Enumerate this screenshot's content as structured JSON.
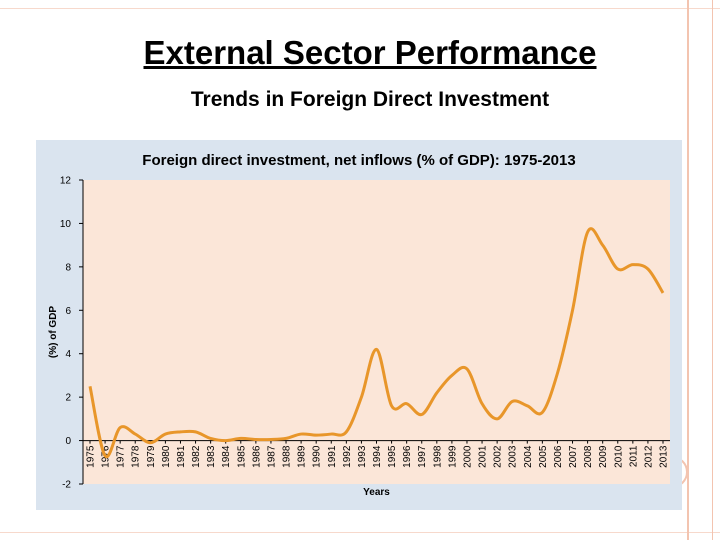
{
  "slide": {
    "title": "External Sector Performance",
    "subtitle": "Trends in Foreign Direct Investment"
  },
  "colors": {
    "panel_bg": "#dae4ef",
    "plot_bg": "#fbe6d8",
    "line": "#e8962a",
    "decoration": "#f3c4b0"
  },
  "chart_data": {
    "type": "line",
    "title": "Foreign direct investment, net inflows (% of GDP): 1975-2013",
    "xlabel": "Years",
    "ylabel": "(%) of GDP",
    "ylim": [
      -2,
      12
    ],
    "yticks": [
      -2,
      0,
      2,
      4,
      6,
      8,
      10,
      12
    ],
    "grid": false,
    "legend": "none",
    "x": [
      "1975",
      "1976",
      "1977",
      "1978",
      "1979",
      "1980",
      "1981",
      "1982",
      "1983",
      "1984",
      "1985",
      "1986",
      "1987",
      "1988",
      "1989",
      "1990",
      "1991",
      "1992",
      "1993",
      "1994",
      "1995",
      "1996",
      "1997",
      "1998",
      "1999",
      "2000",
      "2001",
      "2002",
      "2003",
      "2004",
      "2005",
      "2006",
      "2007",
      "2008",
      "2009",
      "2010",
      "2011",
      "2012",
      "2013"
    ],
    "series": [
      {
        "values": [
          2.5,
          -0.7,
          0.6,
          0.3,
          -0.1,
          0.3,
          0.4,
          0.4,
          0.1,
          0.0,
          0.1,
          0.05,
          0.05,
          0.1,
          0.3,
          0.25,
          0.3,
          0.4,
          2.0,
          4.2,
          1.6,
          1.7,
          1.2,
          2.2,
          3.0,
          3.3,
          1.7,
          1.0,
          1.8,
          1.6,
          1.3,
          3.1,
          6.0,
          9.6,
          9.0,
          7.9,
          8.1,
          7.9,
          6.8
        ]
      }
    ]
  }
}
